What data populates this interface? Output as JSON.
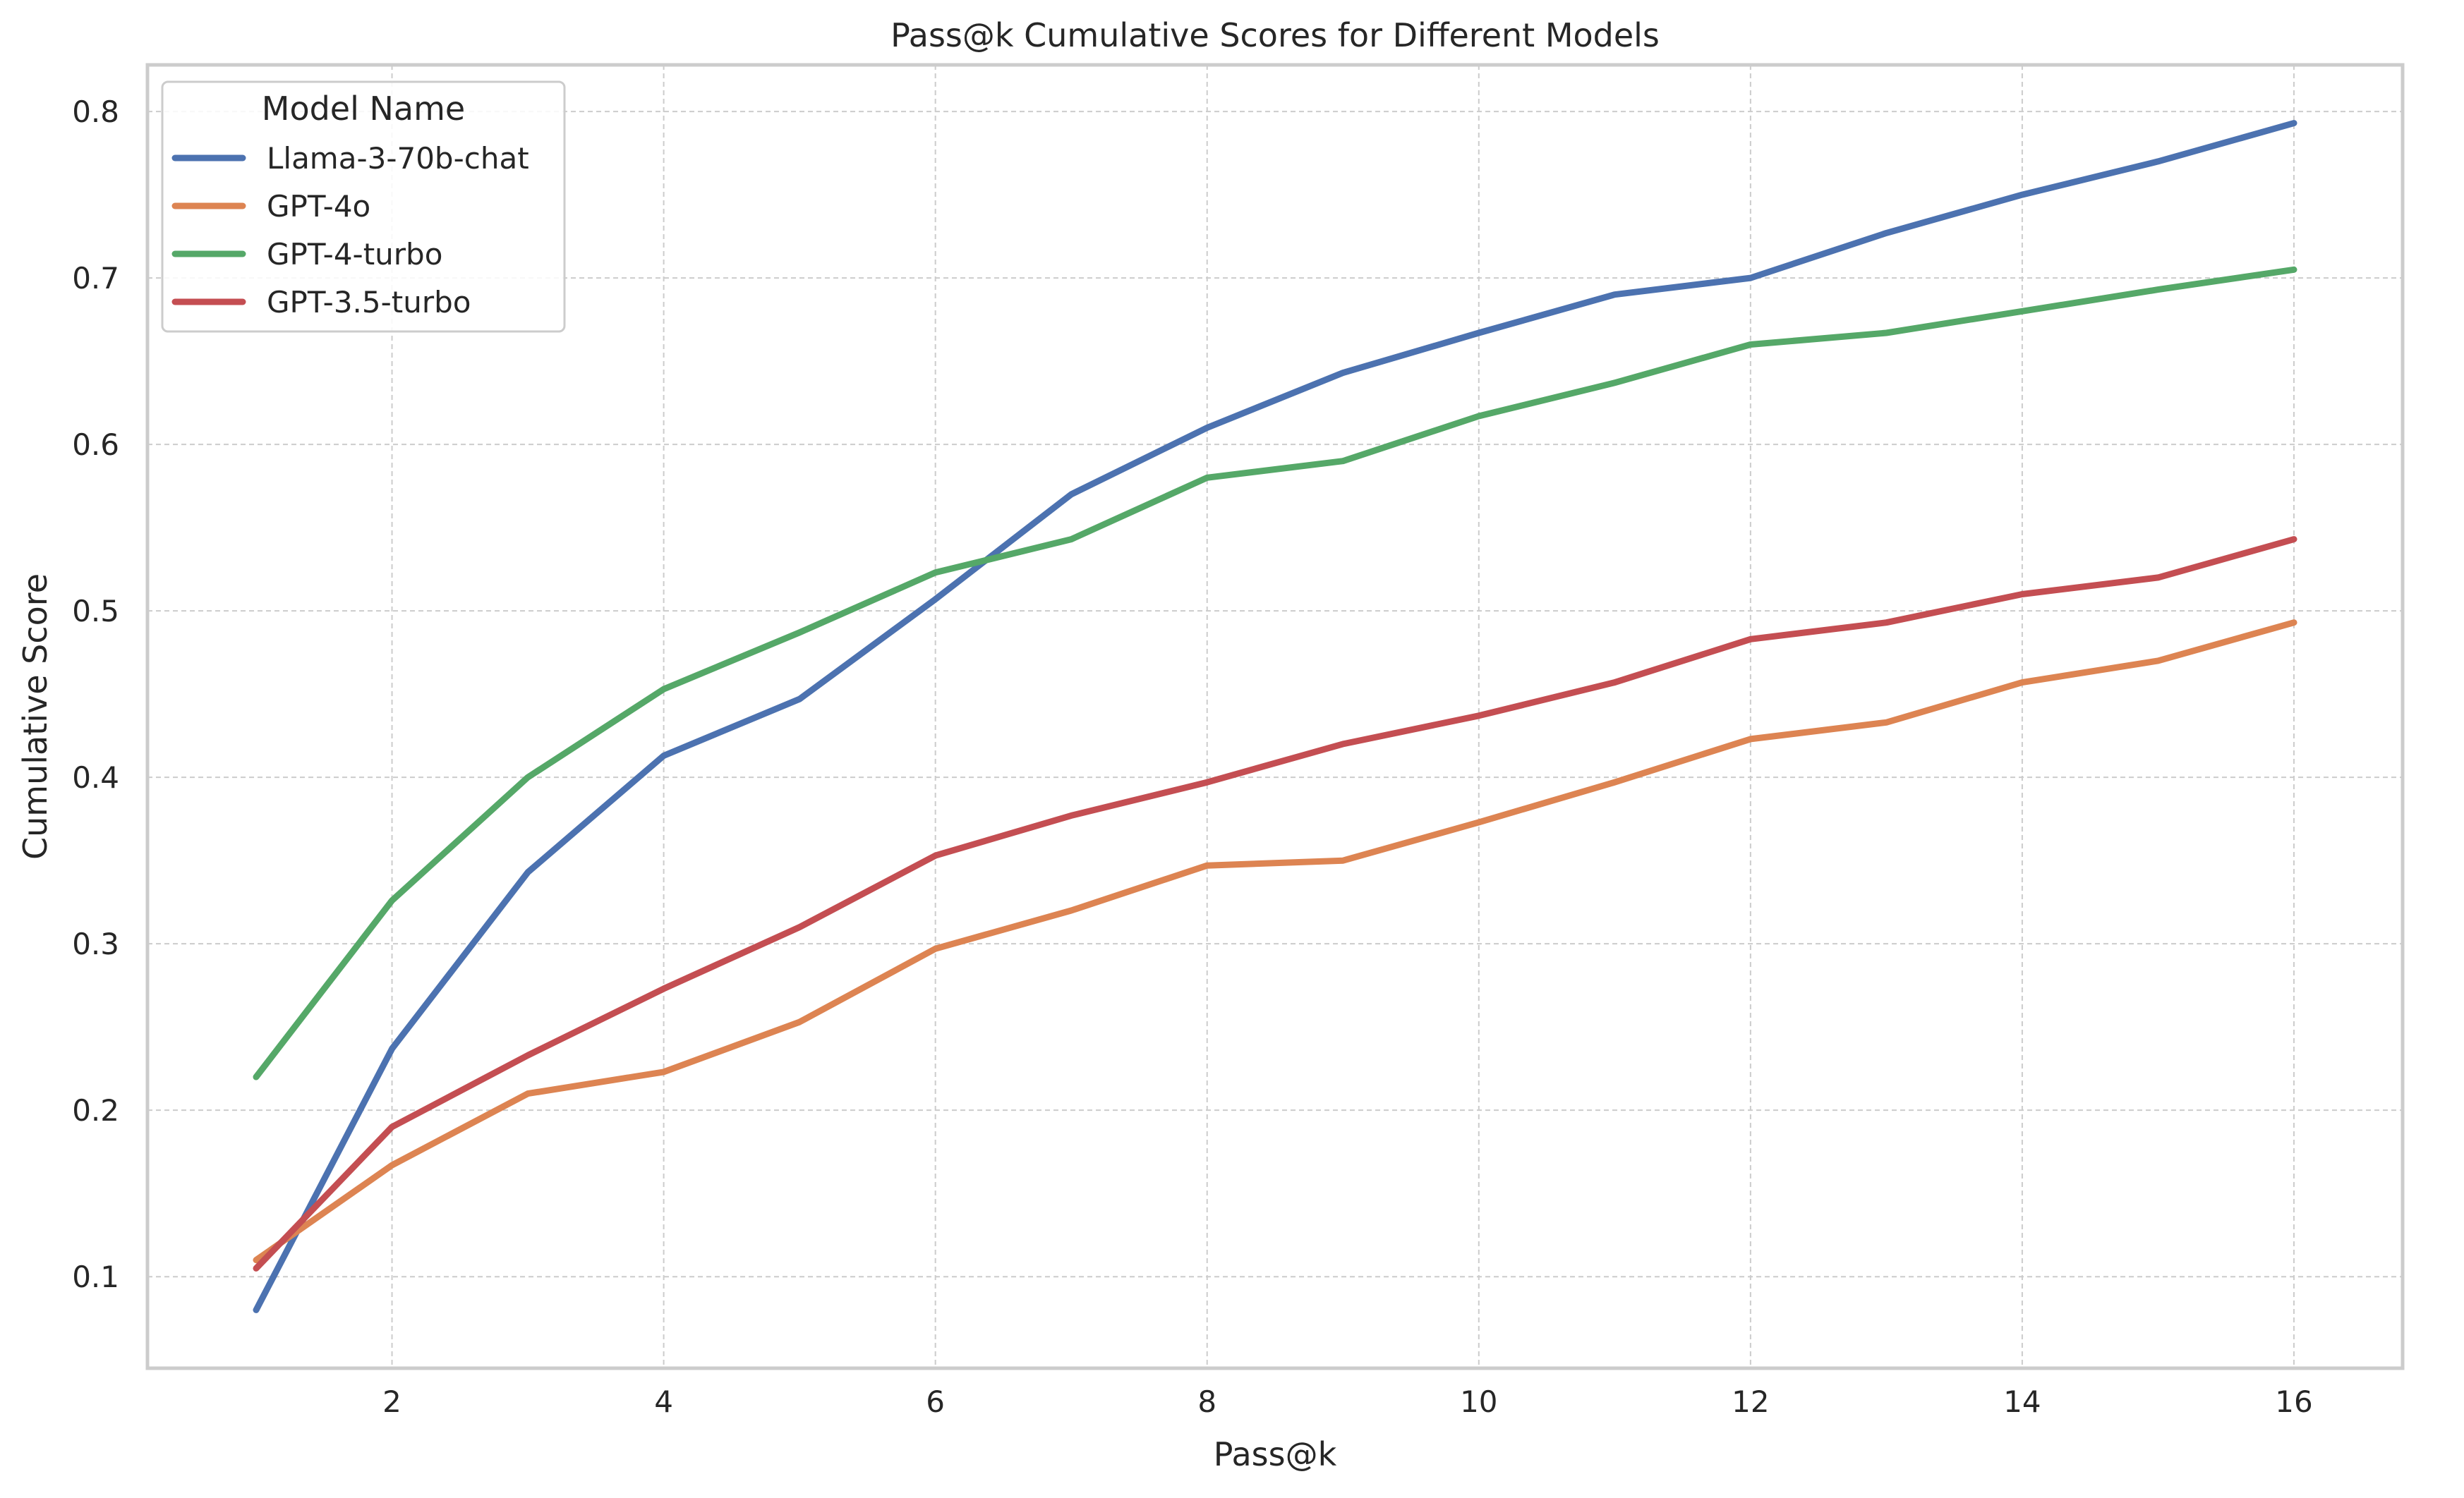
{
  "chart_data": {
    "type": "line",
    "title": "Pass@k Cumulative Scores for Different Models",
    "xlabel": "Pass@k",
    "ylabel": "Cumulative Score",
    "x": [
      1,
      2,
      3,
      4,
      5,
      6,
      7,
      8,
      9,
      10,
      11,
      12,
      13,
      14,
      15,
      16
    ],
    "xlim": [
      0.2,
      16.8
    ],
    "ylim": [
      0.045,
      0.828
    ],
    "xticks": [
      2,
      4,
      6,
      8,
      10,
      12,
      14,
      16
    ],
    "yticks": [
      0.1,
      0.2,
      0.3,
      0.4,
      0.5,
      0.6,
      0.7,
      0.8
    ],
    "xtick_labels": [
      "2",
      "4",
      "6",
      "8",
      "10",
      "12",
      "14",
      "16"
    ],
    "ytick_labels": [
      "0.1",
      "0.2",
      "0.3",
      "0.4",
      "0.5",
      "0.6",
      "0.7",
      "0.8"
    ],
    "grid": true,
    "legend": {
      "title": "Model Name",
      "placement": "top-left"
    },
    "series": [
      {
        "name": "Llama-3-70b-chat",
        "color": "#4c72b0",
        "values": [
          0.08,
          0.237,
          0.343,
          0.413,
          0.447,
          0.507,
          0.57,
          0.61,
          0.643,
          0.667,
          0.69,
          0.7,
          0.727,
          0.75,
          0.77,
          0.793
        ]
      },
      {
        "name": "GPT-4o",
        "color": "#dd8452",
        "values": [
          0.11,
          0.167,
          0.21,
          0.223,
          0.253,
          0.297,
          0.32,
          0.347,
          0.35,
          0.373,
          0.397,
          0.423,
          0.433,
          0.457,
          0.47,
          0.493
        ]
      },
      {
        "name": "GPT-4-turbo",
        "color": "#55a868",
        "values": [
          0.22,
          0.326,
          0.4,
          0.453,
          0.487,
          0.523,
          0.543,
          0.58,
          0.59,
          0.617,
          0.637,
          0.66,
          0.667,
          0.68,
          0.693,
          0.705
        ]
      },
      {
        "name": "GPT-3.5-turbo",
        "color": "#c44e52",
        "values": [
          0.105,
          0.19,
          0.233,
          0.273,
          0.31,
          0.353,
          0.377,
          0.397,
          0.42,
          0.437,
          0.457,
          0.483,
          0.493,
          0.51,
          0.52,
          0.543
        ]
      }
    ]
  }
}
